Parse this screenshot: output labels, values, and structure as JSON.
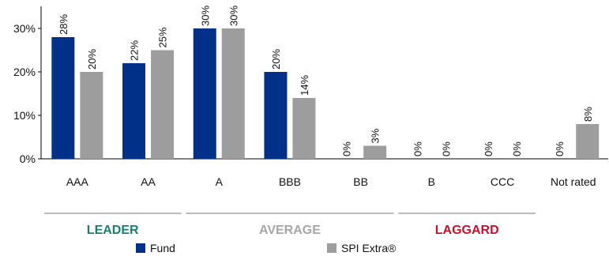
{
  "chart_data": {
    "type": "bar",
    "categories": [
      "AAA",
      "AA",
      "A",
      "BBB",
      "BB",
      "B",
      "CCC",
      "Not rated"
    ],
    "series": [
      {
        "name": "Fund",
        "color": "#003087",
        "values": [
          28,
          22,
          30,
          20,
          0,
          0,
          0,
          0
        ]
      },
      {
        "name": "SPI Extra®",
        "color": "#9d9d9d",
        "values": [
          20,
          25,
          30,
          14,
          3,
          0,
          0,
          8
        ]
      }
    ],
    "data_labels": [
      [
        "28%",
        "22%",
        "30%",
        "20%",
        "0%",
        "0%",
        "0%",
        "0%"
      ],
      [
        "20%",
        "25%",
        "30%",
        "14%",
        "3%",
        "0%",
        "0%",
        "8%"
      ]
    ],
    "yticks": [
      "0%",
      "10%",
      "20%",
      "30%"
    ],
    "ylim": [
      0,
      30
    ],
    "grid": false,
    "legend_position": "bottom",
    "groups": [
      {
        "label": "LEADER",
        "color": "#1a7f6e",
        "categories": [
          "AAA",
          "AA"
        ]
      },
      {
        "label": "AVERAGE",
        "color": "#a6a6a6",
        "categories": [
          "A",
          "BBB",
          "BB"
        ]
      },
      {
        "label": "LAGGARD",
        "color": "#c8102e",
        "categories": [
          "B",
          "CCC"
        ]
      }
    ]
  },
  "legend": {
    "fund_label": "Fund",
    "index_label": "SPI Extra®"
  }
}
